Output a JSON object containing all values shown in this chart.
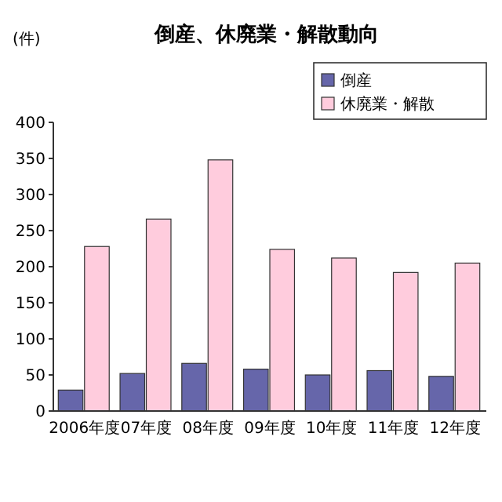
{
  "chart_data": {
    "type": "bar",
    "title": "倒産、休廃業・解散動向",
    "ylabel": "(件)",
    "categories": [
      "2006年度",
      "07年度",
      "08年度",
      "09年度",
      "10年度",
      "11年度",
      "12年度"
    ],
    "series": [
      {
        "name": "倒産",
        "color": "#6666aa",
        "values": [
          29,
          52,
          66,
          58,
          50,
          56,
          48
        ]
      },
      {
        "name": "休廃業・解散",
        "color": "#ffccdd",
        "values": [
          228,
          266,
          348,
          224,
          212,
          192,
          205
        ]
      }
    ],
    "ylim": [
      0,
      400
    ],
    "yticks": [
      0,
      50,
      100,
      150,
      200,
      250,
      300,
      350,
      400
    ],
    "grid": false,
    "legend": "top right"
  }
}
